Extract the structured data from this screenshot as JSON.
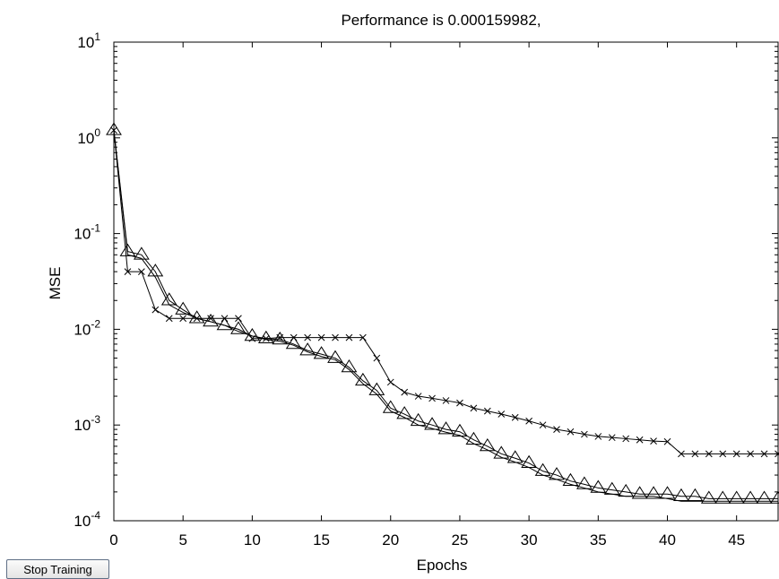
{
  "chart_data": {
    "type": "line",
    "title": "Performance is 0.000159982,",
    "xlabel": "Epochs",
    "ylabel": "MSE",
    "yscale": "log",
    "xlim": [
      0,
      48
    ],
    "ylim": [
      0.0001,
      10
    ],
    "x_ticks": [
      0,
      5,
      10,
      15,
      20,
      25,
      30,
      35,
      40,
      45
    ],
    "y_ticks": [
      {
        "value": 0.0001,
        "base": "10",
        "exp": "-4"
      },
      {
        "value": 0.001,
        "base": "10",
        "exp": "-3"
      },
      {
        "value": 0.01,
        "base": "10",
        "exp": "-2"
      },
      {
        "value": 0.1,
        "base": "10",
        "exp": "-1"
      },
      {
        "value": 1,
        "base": "10",
        "exp": "0"
      },
      {
        "value": 10,
        "base": "10",
        "exp": "1"
      }
    ],
    "grid": false,
    "line_color": "#000000",
    "series": [
      {
        "marker": "x",
        "x": [
          0,
          1,
          2,
          3,
          4,
          5,
          6,
          7,
          8,
          9,
          10,
          11,
          12,
          13,
          14,
          15,
          16,
          17,
          18,
          19,
          20,
          21,
          22,
          23,
          24,
          25,
          26,
          27,
          28,
          29,
          30,
          31,
          32,
          33,
          34,
          35,
          36,
          37,
          38,
          39,
          40,
          41,
          42,
          43,
          44,
          45,
          46,
          47,
          48
        ],
        "values": [
          1.2,
          0.04,
          0.04,
          0.016,
          0.013,
          0.013,
          0.013,
          0.013,
          0.013,
          0.013,
          0.008,
          0.008,
          0.0082,
          0.0082,
          0.0082,
          0.0082,
          0.0082,
          0.0082,
          0.0082,
          0.005,
          0.0028,
          0.0022,
          0.002,
          0.0019,
          0.0018,
          0.0017,
          0.0015,
          0.0014,
          0.0013,
          0.0012,
          0.0011,
          0.001,
          0.0009,
          0.00085,
          0.0008,
          0.00076,
          0.00074,
          0.00072,
          0.0007,
          0.00068,
          0.00067,
          0.0005,
          0.0005,
          0.0005,
          0.0005,
          0.0005,
          0.0005,
          0.0005,
          0.0005
        ]
      },
      {
        "marker": "triangle",
        "x": [
          0,
          1,
          2,
          3,
          4,
          5,
          6,
          7,
          8,
          9,
          10,
          11,
          12,
          13,
          14,
          15,
          16,
          17,
          18,
          19,
          20,
          21,
          22,
          23,
          24,
          25,
          26,
          27,
          28,
          29,
          30,
          31,
          32,
          33,
          34,
          35,
          36,
          37,
          38,
          39,
          40,
          41,
          42,
          43,
          44,
          45,
          46,
          47,
          48
        ],
        "values": [
          1.2,
          0.065,
          0.06,
          0.04,
          0.02,
          0.016,
          0.013,
          0.012,
          0.011,
          0.01,
          0.0085,
          0.008,
          0.0078,
          0.007,
          0.006,
          0.0055,
          0.005,
          0.004,
          0.0029,
          0.0023,
          0.0015,
          0.0013,
          0.0011,
          0.001,
          0.0009,
          0.00085,
          0.0007,
          0.0006,
          0.0005,
          0.00045,
          0.0004,
          0.00033,
          0.0003,
          0.00026,
          0.00024,
          0.00022,
          0.00021,
          0.0002,
          0.00019,
          0.00019,
          0.00019,
          0.00018,
          0.00018,
          0.00017,
          0.00017,
          0.00017,
          0.00017,
          0.00017,
          0.00017
        ]
      },
      {
        "marker": "none",
        "x": [
          0,
          1,
          2,
          3,
          4,
          5,
          6,
          7,
          8,
          9,
          10,
          11,
          12,
          13,
          14,
          15,
          16,
          17,
          18,
          19,
          20,
          21,
          22,
          23,
          24,
          25,
          26,
          27,
          28,
          29,
          30,
          31,
          32,
          33,
          34,
          35,
          36,
          37,
          38,
          39,
          40,
          41,
          42,
          43,
          44,
          45,
          46,
          47,
          48
        ],
        "values": [
          1.2,
          0.06,
          0.055,
          0.035,
          0.018,
          0.015,
          0.013,
          0.012,
          0.011,
          0.0095,
          0.0085,
          0.0078,
          0.0075,
          0.0068,
          0.0058,
          0.0052,
          0.0048,
          0.0038,
          0.0027,
          0.0021,
          0.0014,
          0.0012,
          0.001,
          0.00092,
          0.00084,
          0.00078,
          0.00064,
          0.00055,
          0.00046,
          0.00041,
          0.00036,
          0.0003,
          0.00027,
          0.00024,
          0.00022,
          0.0002,
          0.00019,
          0.00018,
          0.00018,
          0.00018,
          0.00017,
          0.00016,
          0.00016,
          0.00016,
          0.00016,
          0.00016,
          0.00016,
          0.00016,
          0.00016
        ]
      }
    ]
  },
  "controls": {
    "stop_training_label": "Stop Training"
  }
}
